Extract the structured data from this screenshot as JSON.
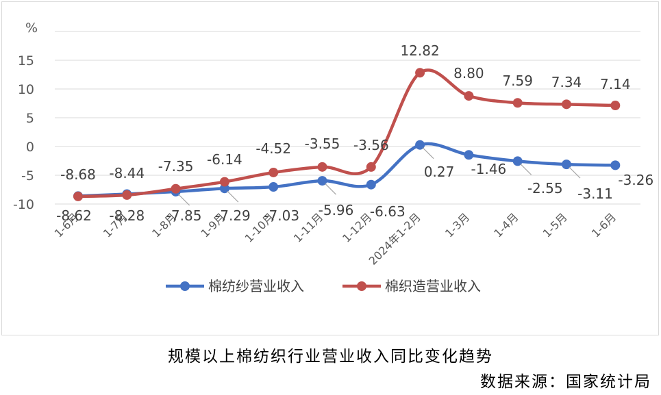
{
  "chart_data": {
    "type": "line",
    "title": "",
    "xlabel": "",
    "ylabel": "%",
    "ylim": [
      -10,
      20
    ],
    "yticks": [
      -10,
      -5,
      0,
      5,
      10,
      15
    ],
    "grid": true,
    "legend_position": "bottom",
    "categories": [
      "1-6月",
      "1-7月",
      "1-8月",
      "1-9月",
      "1-10月",
      "1-11月",
      "1-12月",
      "2024年1-2月",
      "1-3月",
      "1-4月",
      "1-5月",
      "1-6月"
    ],
    "series": [
      {
        "name": "棉纺纱营业收入",
        "color": "#4472c4",
        "values": [
          -8.62,
          -8.28,
          -7.85,
          -7.29,
          -7.03,
          -5.96,
          -6.63,
          0.27,
          -1.46,
          -2.55,
          -3.11,
          -3.26
        ],
        "labels": [
          "-8.62",
          "-8.28",
          "-7.85",
          "-7.29",
          "-7.03",
          "-5.96",
          "-6.63",
          "0.27",
          "-1.46",
          "-2.55",
          "-3.11",
          "-3.26"
        ]
      },
      {
        "name": "棉织造营业收入",
        "color": "#c0504d",
        "values": [
          -8.68,
          -8.44,
          -7.35,
          -6.14,
          -4.52,
          -3.55,
          -3.56,
          12.82,
          8.8,
          7.59,
          7.34,
          7.14
        ],
        "labels": [
          "-8.68",
          "-8.44",
          "-7.35",
          "-6.14",
          "-4.52",
          "-3.55",
          "-3.56",
          "12.82",
          "8.80",
          "7.59",
          "7.34",
          "7.14"
        ]
      }
    ]
  },
  "caption": {
    "title": "规模以上棉纺织行业营业收入同比变化趋势",
    "source": "数据来源：国家统计局"
  }
}
